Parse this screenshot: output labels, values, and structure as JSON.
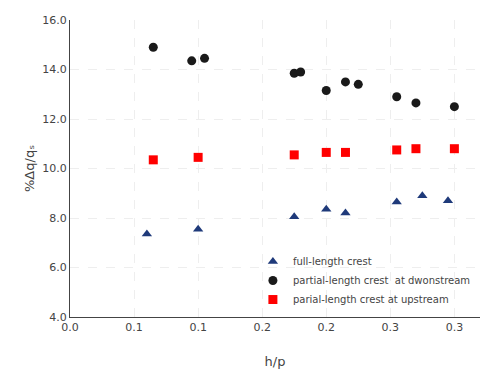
{
  "chart_data": {
    "type": "scatter",
    "xlabel": "h/p",
    "ylabel": "%Δq/qₛ",
    "series": [
      {
        "name": "full-length crest",
        "color": "#1f3a7a",
        "marker": "triangle-up",
        "x": [
          0.06,
          0.1,
          0.175,
          0.215,
          0.2,
          0.255,
          0.295,
          0.275
        ],
        "values": [
          7.35,
          7.55,
          8.05,
          8.2,
          8.35,
          8.65,
          8.7,
          8.9
        ]
      },
      {
        "name": "partial-length crest  at dwonstream",
        "color": "#1a1a1a",
        "marker": "circle",
        "x": [
          0.065,
          0.095,
          0.105,
          0.175,
          0.18,
          0.215,
          0.225,
          0.2,
          0.255,
          0.27,
          0.3
        ],
        "values": [
          14.9,
          14.35,
          14.45,
          13.85,
          13.9,
          13.5,
          13.4,
          13.15,
          12.9,
          12.65,
          12.5
        ]
      },
      {
        "name": "parial-length crest at upstream",
        "color": "#ff0000",
        "marker": "square",
        "x": [
          0.065,
          0.1,
          0.175,
          0.215,
          0.2,
          0.255,
          0.27,
          0.3
        ],
        "values": [
          10.35,
          10.45,
          10.55,
          10.65,
          10.65,
          10.75,
          10.8,
          10.8
        ]
      }
    ],
    "xlim": [
      0.0,
      0.32
    ],
    "ylim": [
      4.0,
      16.0
    ],
    "xticks": [
      {
        "value": 0.0,
        "label": "0.0"
      },
      {
        "value": 0.05,
        "label": "0.1"
      },
      {
        "value": 0.1,
        "label": "0.1"
      },
      {
        "value": 0.15,
        "label": "0.2"
      },
      {
        "value": 0.2,
        "label": "0.2"
      },
      {
        "value": 0.25,
        "label": "0.3"
      },
      {
        "value": 0.3,
        "label": "0.3"
      }
    ],
    "yticks": [
      {
        "value": 4.0,
        "label": "4.0"
      },
      {
        "value": 6.0,
        "label": "6.0"
      },
      {
        "value": 8.0,
        "label": "8.0"
      },
      {
        "value": 10.0,
        "label": "10.0"
      },
      {
        "value": 12.0,
        "label": "12.0"
      },
      {
        "value": 14.0,
        "label": "14.0"
      },
      {
        "value": 16.0,
        "label": "16.0"
      }
    ],
    "grid": true,
    "legend": "lower right"
  }
}
